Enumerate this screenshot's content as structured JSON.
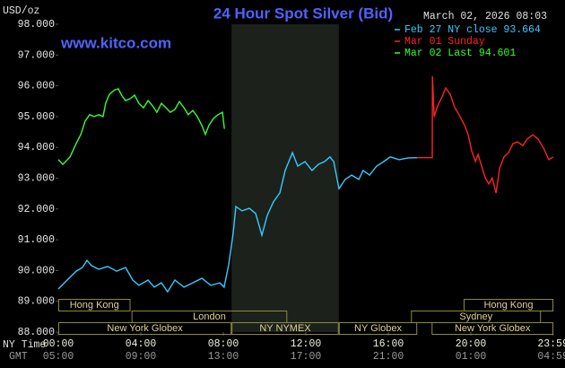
{
  "chart_data": {
    "type": "line",
    "title": "24 Hour Spot Silver (Bid)",
    "ylabel": "USD/oz",
    "website": "www.kitco.com",
    "timestamp": "March 02, 2026 08:03",
    "xlim": [
      0,
      24
    ],
    "ylim": [
      88,
      98
    ],
    "grid": false,
    "legend": "top-right",
    "yticks": [
      {
        "value": 88,
        "label": "88.000"
      },
      {
        "value": 89,
        "label": "89.000"
      },
      {
        "value": 90,
        "label": "90.000"
      },
      {
        "value": 91,
        "label": "91.000"
      },
      {
        "value": 92,
        "label": "92.000"
      },
      {
        "value": 93,
        "label": "93.000"
      },
      {
        "value": 94,
        "label": "94.000"
      },
      {
        "value": 95,
        "label": "95.000"
      },
      {
        "value": 96,
        "label": "96.000"
      },
      {
        "value": 97,
        "label": "97.000"
      },
      {
        "value": 98,
        "label": "98.000"
      }
    ],
    "xticks_label": "NY Time",
    "xticks": [
      {
        "value": 0,
        "label": "00:00"
      },
      {
        "value": 4,
        "label": "04:00"
      },
      {
        "value": 8,
        "label": "08:00"
      },
      {
        "value": 12,
        "label": "12:00"
      },
      {
        "value": 16,
        "label": "16:00"
      },
      {
        "value": 20,
        "label": "20:00"
      },
      {
        "value": 23.983,
        "label": "23:59"
      }
    ],
    "x2ticks_label": "GMT",
    "x2ticks": [
      {
        "value": 0,
        "label": "05:00"
      },
      {
        "value": 4,
        "label": "09:00"
      },
      {
        "value": 8,
        "label": "13:00"
      },
      {
        "value": 12,
        "label": "17:00"
      },
      {
        "value": 16,
        "label": "21:00"
      },
      {
        "value": 20,
        "label": "01:00"
      },
      {
        "value": 23.983,
        "label": "04:59"
      }
    ],
    "session_rows": [
      [
        {
          "label": "Hong Kong",
          "start": 0,
          "end": 3.5
        },
        {
          "label": "Hong Kong",
          "start": 19.65,
          "end": 24
        }
      ],
      [
        {
          "label": "London",
          "start": 3.55,
          "end": 11.1
        },
        {
          "label": "Sydney",
          "start": 17.1,
          "end": 23.4
        }
      ],
      [
        {
          "label": "New York Globex",
          "start": 0,
          "end": 8.4
        },
        {
          "label": "NY NYMEX",
          "start": 8.4,
          "end": 13.6,
          "shaded": true
        },
        {
          "label": "NY Globex",
          "start": 13.6,
          "end": 17.4
        },
        {
          "label": "New York Globex",
          "start": 18.1,
          "end": 24
        }
      ]
    ],
    "series": [
      {
        "name": "Feb 27 NY close 93.664",
        "color": "#33ccff",
        "x": [
          0,
          0.43,
          0.87,
          1.17,
          1.39,
          1.61,
          1.96,
          2.39,
          2.83,
          3.26,
          3.61,
          3.91,
          4.35,
          4.65,
          5.0,
          5.3,
          5.65,
          6.09,
          6.52,
          6.96,
          7.39,
          7.83,
          8.04,
          8.26,
          8.48,
          8.61,
          8.91,
          9.26,
          9.57,
          9.87,
          10.13,
          10.43,
          10.74,
          11.0,
          11.35,
          11.61,
          11.96,
          12.3,
          12.61,
          12.91,
          13.17,
          13.35,
          13.61,
          13.91,
          14.22,
          14.57,
          14.78,
          15.09,
          15.43,
          15.78,
          16.09,
          16.52,
          16.96,
          17.39
        ],
        "values": [
          89.4,
          89.69,
          89.98,
          90.1,
          90.33,
          90.16,
          90.04,
          90.13,
          89.98,
          90.1,
          89.69,
          89.52,
          89.69,
          89.46,
          89.6,
          89.31,
          89.69,
          89.46,
          89.6,
          89.75,
          89.52,
          89.6,
          89.46,
          90.19,
          91.21,
          92.08,
          91.94,
          92.02,
          91.85,
          91.15,
          91.79,
          92.23,
          92.52,
          93.25,
          93.83,
          93.39,
          93.54,
          93.25,
          93.45,
          93.54,
          93.69,
          93.54,
          92.66,
          92.96,
          93.1,
          92.96,
          93.25,
          93.1,
          93.39,
          93.54,
          93.69,
          93.6,
          93.66,
          93.664
        ]
      },
      {
        "name": "Mar 01 Sunday",
        "color": "#ff2222",
        "x": [
          17.39,
          18.13,
          18.14,
          18.22,
          18.39,
          18.61,
          18.78,
          19.0,
          19.22,
          19.43,
          19.7,
          19.87,
          20.04,
          20.22,
          20.35,
          20.52,
          20.7,
          20.87,
          21.04,
          21.22,
          21.39,
          21.61,
          21.83,
          22.04,
          22.26,
          22.52,
          22.74,
          23.0,
          23.26,
          23.52,
          23.78,
          24.0
        ],
        "values": [
          93.664,
          93.664,
          96.31,
          95.0,
          95.35,
          95.64,
          95.93,
          95.73,
          95.29,
          95.06,
          94.71,
          94.42,
          93.89,
          93.54,
          93.77,
          93.39,
          93.01,
          92.81,
          93.01,
          92.52,
          93.31,
          93.69,
          93.83,
          94.12,
          94.18,
          94.06,
          94.27,
          94.41,
          94.27,
          93.98,
          93.6,
          93.69
        ]
      },
      {
        "name": "Mar 02 Last 94.601",
        "color": "#33ff33",
        "x": [
          0,
          0.22,
          0.57,
          0.87,
          1.09,
          1.3,
          1.52,
          1.74,
          1.96,
          2.17,
          2.3,
          2.48,
          2.74,
          2.91,
          3.09,
          3.26,
          3.48,
          3.7,
          3.91,
          4.13,
          4.35,
          4.57,
          4.78,
          5.0,
          5.22,
          5.43,
          5.65,
          5.87,
          6.09,
          6.3,
          6.52,
          6.74,
          6.96,
          7.13,
          7.3,
          7.52,
          7.74,
          7.96,
          8.05
        ],
        "values": [
          93.6,
          93.45,
          93.69,
          94.13,
          94.42,
          94.85,
          95.06,
          95.0,
          95.06,
          95.0,
          95.44,
          95.73,
          95.87,
          95.9,
          95.67,
          95.52,
          95.58,
          95.7,
          95.43,
          95.29,
          95.52,
          95.35,
          95.14,
          95.43,
          95.29,
          95.14,
          95.23,
          95.49,
          95.29,
          95.06,
          95.2,
          95.0,
          94.71,
          94.42,
          94.71,
          94.94,
          95.06,
          95.14,
          94.601
        ]
      }
    ]
  }
}
